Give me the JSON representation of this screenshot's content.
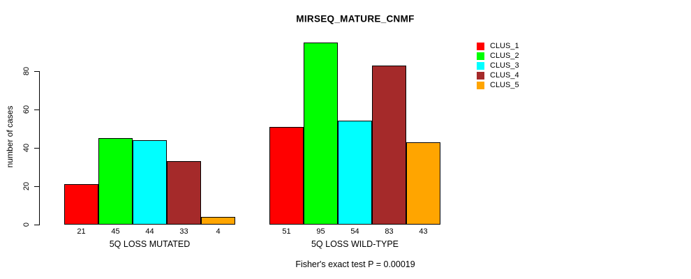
{
  "chart": {
    "title": "MIRSEQ_MATURE_CNMF",
    "ylabel": "number of cases",
    "footer": "Fisher's exact test P = 0.00019"
  },
  "chart_data": {
    "type": "bar",
    "title": "MIRSEQ_MATURE_CNMF",
    "xlabel": "",
    "ylabel": "number of cases",
    "annotation": "Fisher's exact test P = 0.00019",
    "categories": [
      "5Q LOSS MUTATED",
      "5Q LOSS WILD-TYPE"
    ],
    "series": [
      {
        "name": "CLUS_1",
        "color": "#ff0000",
        "values": [
          21,
          51
        ]
      },
      {
        "name": "CLUS_2",
        "color": "#00ff00",
        "values": [
          45,
          95
        ]
      },
      {
        "name": "CLUS_3",
        "color": "#00ffff",
        "values": [
          44,
          54
        ]
      },
      {
        "name": "CLUS_4",
        "color": "#a52a2a",
        "values": [
          33,
          83
        ]
      },
      {
        "name": "CLUS_5",
        "color": "#ffa500",
        "values": [
          4,
          43
        ]
      }
    ],
    "yticks": [
      0,
      20,
      40,
      60,
      80
    ],
    "ylim": [
      0,
      98
    ],
    "bar_value_labels": true,
    "grid": false,
    "legend_position": "right",
    "legend_entries": [
      "CLUS_1",
      "CLUS_2",
      "CLUS_3",
      "CLUS_4",
      "CLUS_5"
    ]
  }
}
